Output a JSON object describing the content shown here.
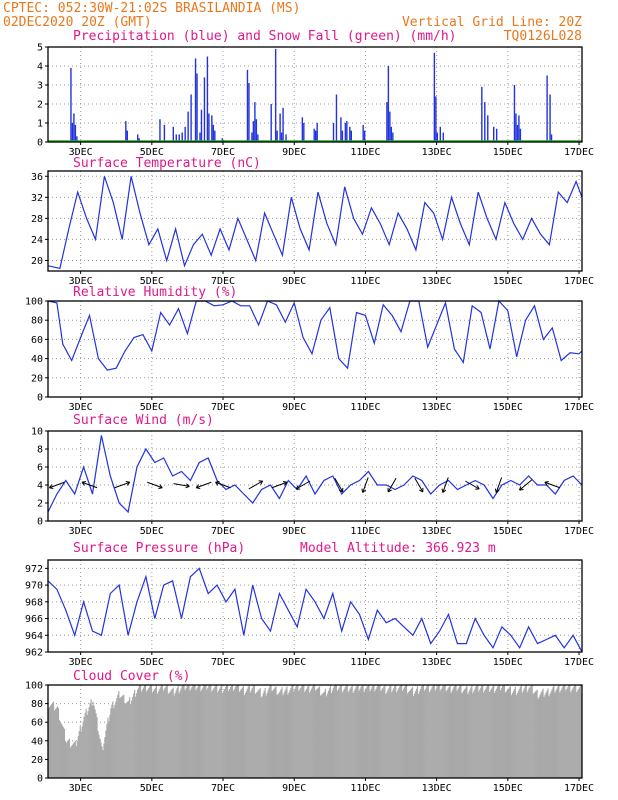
{
  "header": {
    "left1": "CPTEC:   052:30W-21:02S  BRASILANDIA (MS)",
    "left2": "02DEC2020 20Z (GMT)",
    "right1": "Vertical Grid Line: 20Z",
    "right2": "TQ0126L028"
  },
  "colors": {
    "header": "#e8781e",
    "titles": "#e0188c",
    "series": "#2233dd",
    "snow": "#22aa22",
    "cloud": "#a9a9a9"
  },
  "x_axis": {
    "labels": [
      "3DEC",
      "5DEC",
      "7DEC",
      "9DEC",
      "11DEC",
      "13DEC",
      "15DEC",
      "17DEC"
    ],
    "t_start_hours": 0,
    "t_end_hours": 360
  },
  "panels": {
    "precip": {
      "title": "Precipitation (blue) and Snow Fall (green) (mm/h)"
    },
    "temp": {
      "title": "Surface Temperature (nC)"
    },
    "rh": {
      "title": "Relative Humidity (%)"
    },
    "wind": {
      "title": "Surface Wind (m/s)"
    },
    "pres": {
      "title": "Surface Pressure (hPa)",
      "extra": "Model Altitude: 366.923 m"
    },
    "cloud": {
      "title": "Cloud Cover (%)"
    }
  },
  "chart_data": [
    {
      "type": "bar",
      "title": "Precipitation (blue) and Snow Fall (green) (mm/h)",
      "ylim": [
        0,
        5
      ],
      "yticks": [
        0,
        1,
        2,
        3,
        4,
        5
      ],
      "x_unit": "hours since 02DEC2020 20Z",
      "series": [
        {
          "name": "Precipitation",
          "x": [
            15,
            16,
            17,
            18,
            19,
            52,
            53,
            60,
            61,
            75,
            78,
            84,
            86,
            88,
            90,
            92,
            94,
            96,
            99,
            100,
            102,
            103,
            105,
            107,
            108,
            110,
            111,
            112,
            117,
            118,
            134,
            135,
            137,
            138,
            139,
            140,
            141,
            150,
            153,
            154,
            156,
            157,
            158,
            160,
            171,
            172,
            179,
            180,
            181,
            192,
            194,
            197,
            198,
            200,
            201,
            203,
            204,
            212,
            213,
            228,
            229,
            230,
            231,
            232,
            260,
            261,
            262,
            264,
            266,
            292,
            294,
            296,
            300,
            302,
            314,
            315,
            316,
            317,
            318,
            336,
            338,
            339
          ],
          "values": [
            3.9,
            1.0,
            1.5,
            0.9,
            0.3,
            1.1,
            0.6,
            0.4,
            0.2,
            1.2,
            0.9,
            0.8,
            0.4,
            0.4,
            0.5,
            0.8,
            1.6,
            2.5,
            4.4,
            3.6,
            0.5,
            1.7,
            3.4,
            4.5,
            1.5,
            1.4,
            0.9,
            0.6,
            0.2,
            0.1,
            3.8,
            3.1,
            0.5,
            1.1,
            2.1,
            1.2,
            0.4,
            2.0,
            4.9,
            0.6,
            1.5,
            0.5,
            1.8,
            0.4,
            1.3,
            1.0,
            0.7,
            0.6,
            1.0,
            1.0,
            2.5,
            1.3,
            0.6,
            1.0,
            1.1,
            0.8,
            0.6,
            0.9,
            0.6,
            2.1,
            4.0,
            1.6,
            0.8,
            0.5,
            4.7,
            2.4,
            0.5,
            0.8,
            0.5,
            2.9,
            2.1,
            1.4,
            0.8,
            0.7,
            3.0,
            1.5,
            0.9,
            1.4,
            0.7,
            3.5,
            2.5,
            0.4
          ]
        },
        {
          "name": "Snow Fall",
          "x": [
            0,
            360
          ],
          "values": [
            0,
            0
          ]
        }
      ]
    },
    {
      "type": "line",
      "title": "Surface Temperature (nC)",
      "ylim": [
        18,
        37
      ],
      "yticks": [
        20,
        24,
        28,
        32,
        36
      ],
      "x": [
        0,
        8,
        14,
        20,
        26,
        32,
        38,
        44,
        50,
        56,
        62,
        68,
        74,
        80,
        86,
        92,
        98,
        104,
        110,
        116,
        122,
        128,
        134,
        140,
        146,
        152,
        158,
        164,
        170,
        176,
        182,
        188,
        194,
        200,
        206,
        212,
        218,
        224,
        230,
        236,
        242,
        248,
        254,
        260,
        266,
        272,
        278,
        284,
        290,
        296,
        302,
        308,
        314,
        320,
        326,
        332,
        338,
        344,
        350,
        356,
        360
      ],
      "values": [
        19,
        18.5,
        26,
        33,
        28,
        24,
        36,
        31,
        24,
        36,
        29,
        23,
        26,
        20,
        26,
        19,
        23,
        25,
        21,
        26,
        22,
        28,
        24,
        20,
        29,
        25,
        21,
        32,
        26,
        22,
        33,
        27,
        23,
        34,
        28,
        25,
        30,
        27,
        23,
        29,
        26,
        22,
        31,
        29,
        24,
        32,
        27,
        23,
        33,
        28,
        24,
        31,
        27,
        24,
        28,
        25,
        23,
        33,
        31,
        35,
        32
      ]
    },
    {
      "type": "line",
      "title": "Relative Humidity (%)",
      "ylim": [
        0,
        100
      ],
      "yticks": [
        0,
        20,
        40,
        60,
        80,
        100
      ],
      "x": [
        0,
        6,
        10,
        16,
        22,
        28,
        34,
        40,
        46,
        52,
        58,
        64,
        70,
        76,
        82,
        88,
        94,
        100,
        106,
        112,
        118,
        124,
        130,
        136,
        142,
        148,
        154,
        160,
        166,
        172,
        178,
        184,
        190,
        196,
        202,
        208,
        214,
        220,
        226,
        232,
        238,
        244,
        250,
        256,
        262,
        268,
        274,
        280,
        286,
        292,
        298,
        304,
        310,
        316,
        322,
        328,
        334,
        340,
        346,
        352,
        358,
        360
      ],
      "values": [
        100,
        98,
        55,
        38,
        62,
        85,
        40,
        28,
        30,
        48,
        62,
        65,
        48,
        88,
        75,
        92,
        66,
        100,
        100,
        95,
        96,
        100,
        95,
        95,
        75,
        100,
        96,
        78,
        98,
        62,
        45,
        80,
        93,
        40,
        30,
        88,
        85,
        56,
        96,
        85,
        68,
        100,
        100,
        52,
        75,
        98,
        50,
        36,
        95,
        88,
        50,
        100,
        90,
        42,
        80,
        95,
        60,
        72,
        38,
        46,
        45,
        48
      ]
    },
    {
      "type": "line",
      "title": "Surface Wind (m/s)",
      "ylim": [
        0,
        10
      ],
      "yticks": [
        0,
        2,
        4,
        6,
        8,
        10
      ],
      "x": [
        0,
        6,
        12,
        18,
        24,
        30,
        36,
        42,
        48,
        54,
        60,
        66,
        72,
        78,
        84,
        90,
        96,
        102,
        108,
        114,
        120,
        126,
        132,
        138,
        144,
        150,
        156,
        162,
        168,
        174,
        180,
        186,
        192,
        198,
        204,
        210,
        216,
        222,
        228,
        234,
        240,
        246,
        252,
        258,
        264,
        270,
        276,
        282,
        288,
        294,
        300,
        306,
        312,
        318,
        324,
        330,
        336,
        342,
        348,
        354,
        360
      ],
      "values": [
        1,
        3,
        4.5,
        3,
        6,
        3,
        9.5,
        5,
        2,
        1,
        6,
        8,
        6.5,
        7,
        5,
        5.5,
        4.5,
        6.5,
        7,
        4.5,
        3.5,
        4,
        3,
        2,
        3.5,
        4,
        2.5,
        4.5,
        3.5,
        5,
        3,
        4.5,
        5,
        3,
        4,
        4.5,
        5.5,
        4,
        4,
        3.5,
        4,
        5,
        4.5,
        3,
        4,
        4.5,
        3.5,
        4,
        4.5,
        4,
        2.5,
        4,
        4.5,
        4,
        5,
        4,
        4,
        3,
        4.5,
        5,
        4
      ]
    },
    {
      "type": "line",
      "title": "Surface Pressure (hPa)",
      "ylim": [
        962,
        973
      ],
      "yticks": [
        962,
        964,
        966,
        968,
        970,
        972
      ],
      "x": [
        0,
        6,
        12,
        18,
        24,
        30,
        36,
        42,
        48,
        54,
        60,
        66,
        72,
        78,
        84,
        90,
        96,
        102,
        108,
        114,
        120,
        126,
        132,
        138,
        144,
        150,
        156,
        162,
        168,
        174,
        180,
        186,
        192,
        198,
        204,
        210,
        216,
        222,
        228,
        234,
        240,
        246,
        252,
        258,
        264,
        270,
        276,
        282,
        288,
        294,
        300,
        306,
        312,
        318,
        324,
        330,
        336,
        342,
        348,
        354,
        360
      ],
      "values": [
        970.5,
        969.5,
        967,
        964,
        968,
        964.5,
        964,
        969,
        970,
        964,
        968,
        971,
        966,
        970,
        970.5,
        966,
        971,
        972,
        969,
        970,
        968,
        969.5,
        964,
        970,
        966,
        964.5,
        969,
        967,
        965,
        969.5,
        968,
        966,
        969,
        964.5,
        968,
        966.5,
        963.5,
        967,
        965.5,
        966,
        965,
        964,
        966,
        963,
        964.5,
        966.5,
        963,
        963,
        966,
        964,
        962.5,
        965,
        964,
        962.5,
        965,
        963,
        963.5,
        964,
        962.5,
        964,
        962
      ]
    },
    {
      "type": "area",
      "title": "Cloud Cover (%)",
      "ylim": [
        0,
        100
      ],
      "yticks": [
        0,
        20,
        40,
        60,
        80,
        100
      ],
      "x": [
        0,
        6,
        12,
        18,
        24,
        30,
        36,
        42,
        48,
        54,
        60,
        66,
        72,
        78,
        84,
        90,
        96,
        102,
        108,
        114,
        120,
        126,
        132,
        138,
        144,
        150,
        156,
        162,
        168,
        174,
        180,
        186,
        192,
        198,
        204,
        210,
        216,
        222,
        228,
        234,
        240,
        246,
        252,
        258,
        264,
        270,
        276,
        282,
        288,
        294,
        300,
        306,
        312,
        318,
        324,
        330,
        336,
        342,
        348,
        354,
        360
      ],
      "values": [
        80,
        75,
        40,
        35,
        65,
        85,
        30,
        75,
        90,
        80,
        96,
        98,
        95,
        98,
        92,
        98,
        99,
        98,
        99,
        96,
        97,
        99,
        94,
        97,
        90,
        98,
        92,
        95,
        99,
        96,
        98,
        90,
        98,
        97,
        96,
        98,
        97,
        99,
        95,
        97,
        98,
        92,
        98,
        97,
        99,
        96,
        98,
        94,
        97,
        97,
        96,
        99,
        93,
        95,
        98,
        90,
        92,
        96,
        98,
        97,
        95
      ]
    }
  ]
}
